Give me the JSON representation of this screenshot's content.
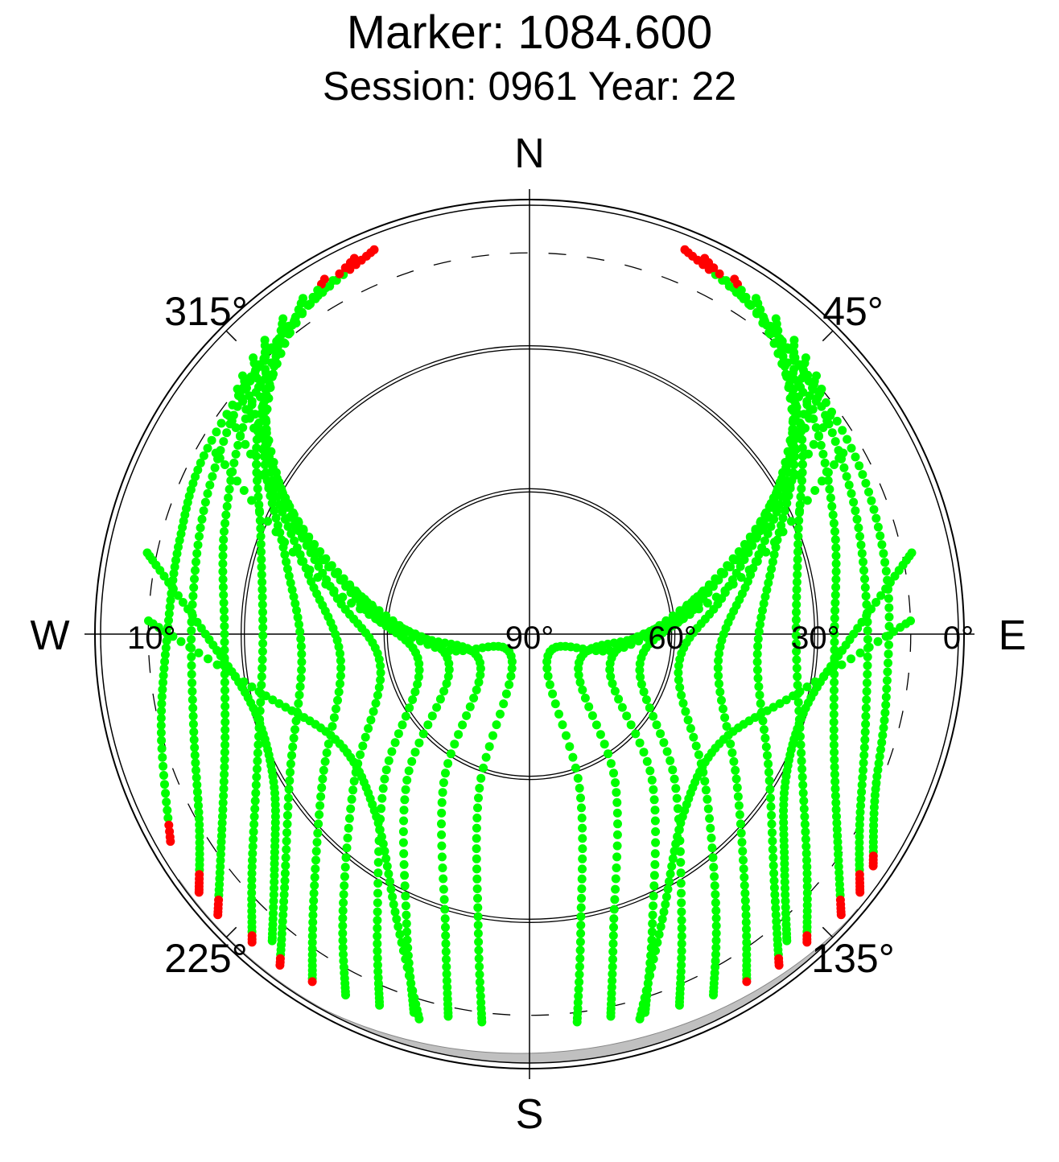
{
  "chart_data": {
    "type": "scatter",
    "subtype": "polar-skyplot",
    "title": "Marker: 1084.600",
    "subtitle": "Session: 0961 Year: 22",
    "directions": {
      "north": "N",
      "south": "S",
      "east": "E",
      "west": "W"
    },
    "azimuth_labels": [
      {
        "az": 45,
        "text": "45°"
      },
      {
        "az": 135,
        "text": "135°"
      },
      {
        "az": 225,
        "text": "225°"
      },
      {
        "az": 315,
        "text": "315°"
      }
    ],
    "elevation_labels": [
      {
        "el": 0,
        "text": "0°"
      },
      {
        "el": 30,
        "text": "30°"
      },
      {
        "el": 60,
        "text": "60°"
      },
      {
        "el": 90,
        "text": "90°"
      },
      {
        "el": 10,
        "text": "10°"
      }
    ],
    "elevation_circles": [
      30,
      60
    ],
    "cutoff_elevation_dashed": 10,
    "horizon_mask": "grey obstruction along southern horizon (az ≈ 130°–235°)",
    "marker_colors": {
      "track": "#00ff00",
      "low_elevation": "#ff0000"
    },
    "tracks": [
      {
        "az": [
          338,
          322,
          300,
          285,
          270,
          255,
          240
        ],
        "el": [
          3,
          8,
          12,
          14,
          14,
          10,
          3
        ]
      },
      {
        "az": [
          335,
          315,
          295,
          275,
          255,
          240,
          232
        ],
        "el": [
          3,
          10,
          16,
          19,
          17,
          10,
          2
        ]
      },
      {
        "az": [
          330,
          310,
          290,
          270,
          250,
          236,
          228
        ],
        "el": [
          4,
          14,
          22,
          26,
          22,
          12,
          2
        ]
      },
      {
        "az": [
          326,
          308,
          290,
          268,
          245,
          230,
          222
        ],
        "el": [
          5,
          18,
          30,
          34,
          27,
          14,
          3
        ]
      },
      {
        "az": [
          322,
          305,
          288,
          265,
          240,
          224,
          217
        ],
        "el": [
          6,
          22,
          36,
          42,
          32,
          16,
          3
        ]
      },
      {
        "az": [
          318,
          302,
          285,
          262,
          235,
          219,
          212
        ],
        "el": [
          7,
          26,
          42,
          50,
          37,
          18,
          4
        ]
      },
      {
        "az": [
          315,
          300,
          282,
          258,
          230,
          214,
          207
        ],
        "el": [
          8,
          30,
          48,
          58,
          42,
          20,
          5
        ]
      },
      {
        "az": [
          312,
          298,
          280,
          255,
          225,
          208,
          202
        ],
        "el": [
          9,
          33,
          54,
          66,
          47,
          22,
          6
        ]
      },
      {
        "az": [
          310,
          296,
          278,
          250,
          220,
          203,
          197
        ],
        "el": [
          10,
          36,
          58,
          72,
          50,
          24,
          7
        ]
      },
      {
        "az": [
          306,
          292,
          272,
          240,
          210,
          196,
          192
        ],
        "el": [
          12,
          40,
          64,
          78,
          54,
          26,
          8
        ]
      },
      {
        "az": [
          300,
          285,
          262,
          220,
          198,
          190,
          187
        ],
        "el": [
          14,
          44,
          70,
          84,
          56,
          28,
          8
        ]
      },
      {
        "az": [
          22,
          38,
          60,
          80,
          100,
          115,
          124
        ],
        "el": [
          3,
          8,
          12,
          14,
          14,
          10,
          3
        ]
      },
      {
        "az": [
          25,
          45,
          65,
          85,
          105,
          120,
          128
        ],
        "el": [
          3,
          10,
          16,
          19,
          17,
          10,
          2
        ]
      },
      {
        "az": [
          30,
          50,
          70,
          90,
          110,
          124,
          132
        ],
        "el": [
          4,
          14,
          22,
          26,
          22,
          12,
          2
        ]
      },
      {
        "az": [
          34,
          52,
          70,
          92,
          115,
          130,
          138
        ],
        "el": [
          5,
          18,
          30,
          34,
          27,
          14,
          3
        ]
      },
      {
        "az": [
          38,
          55,
          72,
          95,
          120,
          136,
          143
        ],
        "el": [
          6,
          22,
          36,
          42,
          32,
          16,
          3
        ]
      },
      {
        "az": [
          42,
          58,
          75,
          98,
          125,
          141,
          148
        ],
        "el": [
          7,
          26,
          42,
          50,
          37,
          18,
          4
        ]
      },
      {
        "az": [
          45,
          60,
          78,
          102,
          130,
          146,
          153
        ],
        "el": [
          8,
          30,
          48,
          58,
          42,
          20,
          5
        ]
      },
      {
        "az": [
          48,
          62,
          80,
          105,
          135,
          152,
          158
        ],
        "el": [
          9,
          33,
          54,
          66,
          47,
          22,
          6
        ]
      },
      {
        "az": [
          50,
          64,
          82,
          110,
          140,
          157,
          163
        ],
        "el": [
          10,
          36,
          58,
          72,
          50,
          24,
          7
        ]
      },
      {
        "az": [
          54,
          68,
          88,
          120,
          150,
          164,
          168
        ],
        "el": [
          12,
          40,
          64,
          78,
          54,
          26,
          8
        ]
      },
      {
        "az": [
          60,
          75,
          98,
          140,
          162,
          170,
          173
        ],
        "el": [
          14,
          44,
          70,
          84,
          56,
          28,
          8
        ]
      },
      {
        "az": [
          282,
          270,
          255,
          240,
          228,
          220
        ],
        "el": [
          8,
          22,
          30,
          28,
          18,
          6
        ]
      },
      {
        "az": [
          78,
          90,
          105,
          120,
          132,
          140
        ],
        "el": [
          8,
          22,
          30,
          28,
          18,
          6
        ]
      },
      {
        "az": [
          272,
          258,
          240,
          220,
          205,
          196
        ],
        "el": [
          10,
          32,
          44,
          40,
          24,
          6
        ]
      },
      {
        "az": [
          88,
          102,
          120,
          140,
          155,
          164
        ],
        "el": [
          10,
          32,
          44,
          40,
          24,
          6
        ]
      }
    ]
  }
}
